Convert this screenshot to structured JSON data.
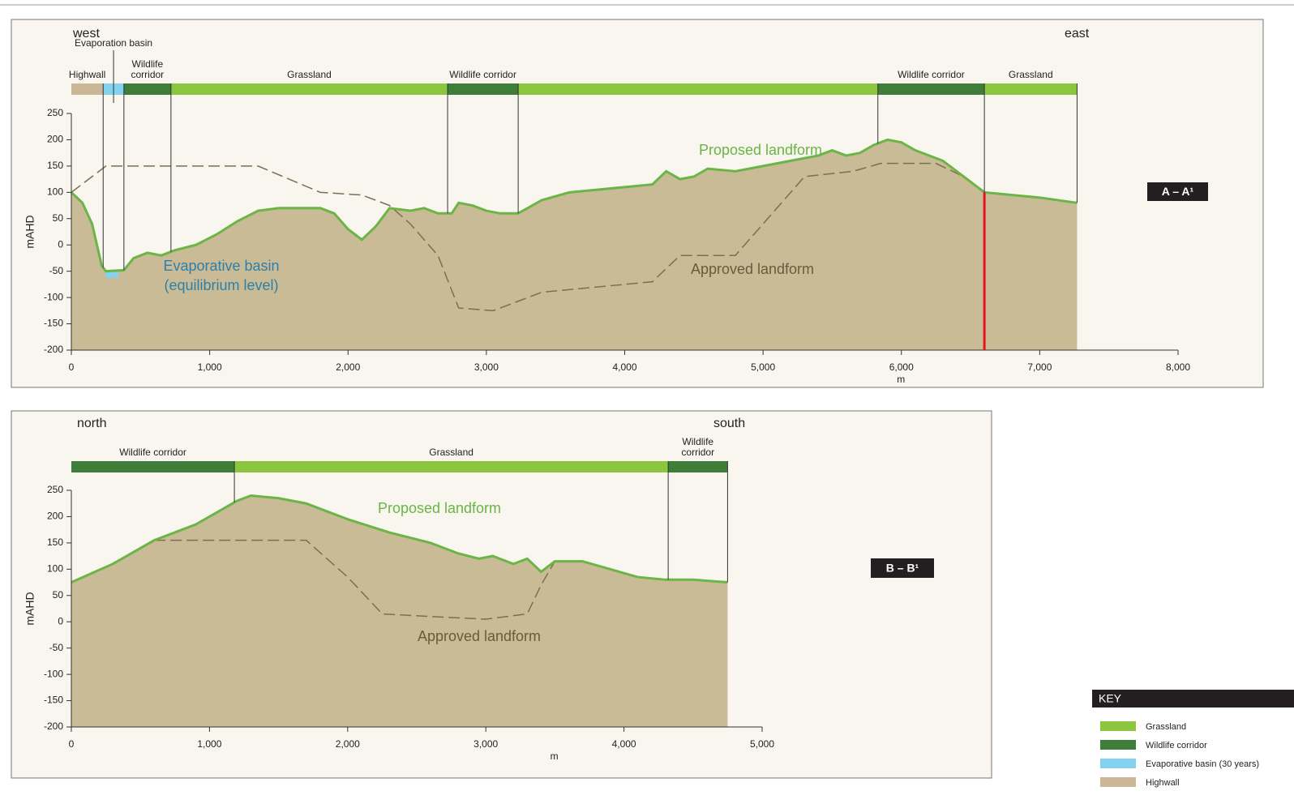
{
  "chart_data": [
    {
      "type": "area",
      "direction_left": "west",
      "direction_right": "east",
      "section": "A – A¹",
      "xlabel": "m",
      "ylabel": "mAHD",
      "xlim": [
        0,
        8000
      ],
      "ylim": [
        -200,
        250
      ],
      "xticks": [
        0,
        {
          "value": 1000,
          "label": "1,000"
        },
        {
          "value": 2000,
          "label": "2,000"
        },
        {
          "value": 3000,
          "label": "3,000"
        },
        {
          "value": 4000,
          "label": "4,000"
        },
        {
          "value": 5000,
          "label": "5,000"
        },
        {
          "value": 6000,
          "label": "6,000"
        },
        {
          "value": 7000,
          "label": "7,000"
        },
        {
          "value": 8000,
          "label": "8,000"
        }
      ],
      "yticks": [
        -200,
        -150,
        -100,
        -50,
        0,
        50,
        100,
        150,
        200,
        250
      ],
      "bands": [
        {
          "label": "Highwall",
          "start": 0,
          "end": 230,
          "color": "#cbb796"
        },
        {
          "label": "Evaporation basin",
          "start": 230,
          "end": 380,
          "color": "#84d2f0"
        },
        {
          "label": "Wildlife corridor",
          "start": 380,
          "end": 720,
          "color": "#3f7d3a"
        },
        {
          "label": "Grassland",
          "start": 720,
          "end": 2720,
          "color": "#8cc63f"
        },
        {
          "label": "Wildlife corridor",
          "start": 2720,
          "end": 3230,
          "color": "#3f7d3a"
        },
        {
          "label": null,
          "start": 3230,
          "end": 5830,
          "color": "#8cc63f"
        },
        {
          "label": "Wildlife corridor",
          "start": 5830,
          "end": 6600,
          "color": "#3f7d3a"
        },
        {
          "label": "Grassland",
          "start": 6600,
          "end": 7270,
          "color": "#8cc63f"
        }
      ],
      "series": [
        {
          "name": "Proposed landform",
          "color": "#6ab545",
          "x": [
            0,
            80,
            150,
            220,
            250,
            380,
            450,
            550,
            650,
            750,
            900,
            1050,
            1200,
            1350,
            1500,
            1800,
            1900,
            2000,
            2100,
            2200,
            2300,
            2450,
            2550,
            2650,
            2750,
            2800,
            2900,
            3000,
            3100,
            3230,
            3400,
            3600,
            3800,
            4000,
            4200,
            4300,
            4400,
            4500,
            4600,
            4800,
            5000,
            5200,
            5400,
            5500,
            5600,
            5700,
            5800,
            5900,
            6000,
            6100,
            6300,
            6450,
            6600,
            6800,
            7000,
            7270
          ],
          "values": [
            100,
            80,
            40,
            -40,
            -50,
            -48,
            -25,
            -15,
            -20,
            -10,
            0,
            20,
            45,
            65,
            70,
            70,
            60,
            30,
            10,
            35,
            70,
            65,
            70,
            60,
            60,
            80,
            75,
            65,
            60,
            60,
            85,
            100,
            105,
            110,
            115,
            140,
            125,
            130,
            145,
            140,
            150,
            160,
            170,
            180,
            170,
            175,
            190,
            200,
            195,
            180,
            160,
            130,
            100,
            95,
            90,
            80
          ]
        },
        {
          "name": "Approved landform",
          "color": "#7d6d52",
          "x": [
            0,
            250,
            1350,
            1800,
            2100,
            2300,
            2450,
            2650,
            2800,
            3050,
            3400,
            3800,
            4200,
            4400,
            4800,
            5300,
            5650,
            5850,
            6250,
            6450
          ],
          "values": [
            100,
            150,
            150,
            100,
            95,
            75,
            40,
            -20,
            -120,
            -125,
            -90,
            -80,
            -70,
            -20,
            -20,
            130,
            140,
            155,
            155,
            130
          ]
        }
      ],
      "annotation": "Evaporative basin (equilibrium level)",
      "marker_x": 6600,
      "marker_color": "#e8141c"
    },
    {
      "type": "area",
      "direction_left": "north",
      "direction_right": "south",
      "section": "B – B¹",
      "xlabel": "m",
      "ylabel": "mAHD",
      "xlim": [
        0,
        5000
      ],
      "ylim": [
        -200,
        250
      ],
      "xticks": [
        0,
        {
          "value": 1000,
          "label": "1,000"
        },
        {
          "value": 2000,
          "label": "2,000"
        },
        {
          "value": 3000,
          "label": "3,000"
        },
        {
          "value": 4000,
          "label": "4,000"
        },
        {
          "value": 5000,
          "label": "5,000"
        }
      ],
      "yticks": [
        -200,
        -150,
        -100,
        -50,
        0,
        50,
        100,
        150,
        200,
        250
      ],
      "bands": [
        {
          "label": "Wildlife corridor",
          "start": 0,
          "end": 1180,
          "color": "#3f7d3a"
        },
        {
          "label": "Grassland",
          "start": 1180,
          "end": 4320,
          "color": "#8cc63f"
        },
        {
          "label": "Wildlife corridor",
          "start": 4320,
          "end": 4750,
          "color": "#3f7d3a"
        }
      ],
      "series": [
        {
          "name": "Proposed landform",
          "color": "#6ab545",
          "x": [
            0,
            300,
            600,
            900,
            1100,
            1200,
            1300,
            1500,
            1700,
            2000,
            2300,
            2600,
            2800,
            2950,
            3050,
            3200,
            3300,
            3400,
            3500,
            3700,
            3900,
            4100,
            4300,
            4500,
            4750
          ],
          "values": [
            75,
            110,
            155,
            185,
            215,
            230,
            240,
            235,
            225,
            195,
            170,
            150,
            130,
            120,
            125,
            110,
            120,
            95,
            115,
            115,
            100,
            85,
            80,
            80,
            75
          ]
        },
        {
          "name": "Approved landform",
          "color": "#7d6d52",
          "x": [
            600,
            1700,
            2000,
            2250,
            2600,
            3000,
            3300,
            3400,
            3500
          ],
          "values": [
            155,
            155,
            85,
            15,
            10,
            5,
            15,
            70,
            115
          ]
        }
      ]
    }
  ],
  "key": {
    "title": "KEY",
    "items": [
      {
        "label": "Grassland",
        "color": "#8cc63f"
      },
      {
        "label": "Wildlife corridor",
        "color": "#3f7d3a"
      },
      {
        "label": "Evaporative basin (30 years)",
        "color": "#84d2f0"
      },
      {
        "label": "Highwall",
        "color": "#cbb796"
      }
    ]
  }
}
